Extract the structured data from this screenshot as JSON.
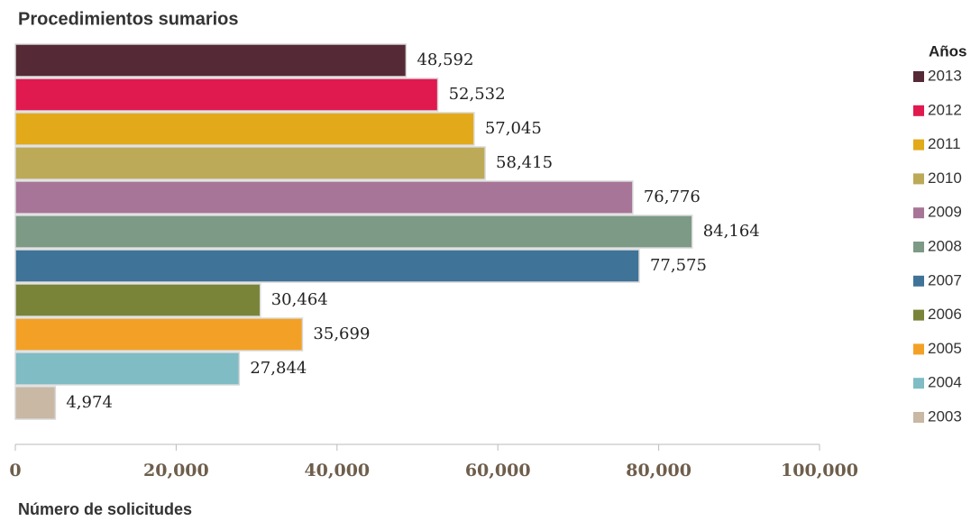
{
  "chart_data": {
    "type": "hbar",
    "title": "Procedimientos sumarios",
    "x_label": "Número de solicitudes",
    "legend_title": "Años",
    "legend": "right",
    "categories": [
      "2013",
      "2012",
      "2011",
      "2010",
      "2009",
      "2008",
      "2007",
      "2006",
      "2005",
      "2004",
      "2003"
    ],
    "values": [
      48592,
      52532,
      57045,
      58415,
      76776,
      84164,
      77575,
      30464,
      35699,
      27844,
      4974
    ],
    "value_labels": [
      "48,592",
      "52,532",
      "57,045",
      "58,415",
      "76,776",
      "84,164",
      "77,575",
      "30,464",
      "35,699",
      "27,844",
      "4,974"
    ],
    "colors": [
      "#552935",
      "#e0194f",
      "#e2aa1a",
      "#bcaa58",
      "#a77597",
      "#7c9a85",
      "#3f7398",
      "#7a8439",
      "#f3a126",
      "#7fbcc4",
      "#c8b8a4"
    ],
    "xlim": [
      0,
      100000
    ],
    "xticks": [
      0,
      {
        "value": 20000,
        "label": "20,000"
      },
      {
        "value": 40000,
        "label": "40,000"
      },
      {
        "value": 60000,
        "label": "60,000"
      },
      {
        "value": 80000,
        "label": "80,000"
      },
      {
        "value": 100000,
        "label": "100,000"
      }
    ]
  }
}
